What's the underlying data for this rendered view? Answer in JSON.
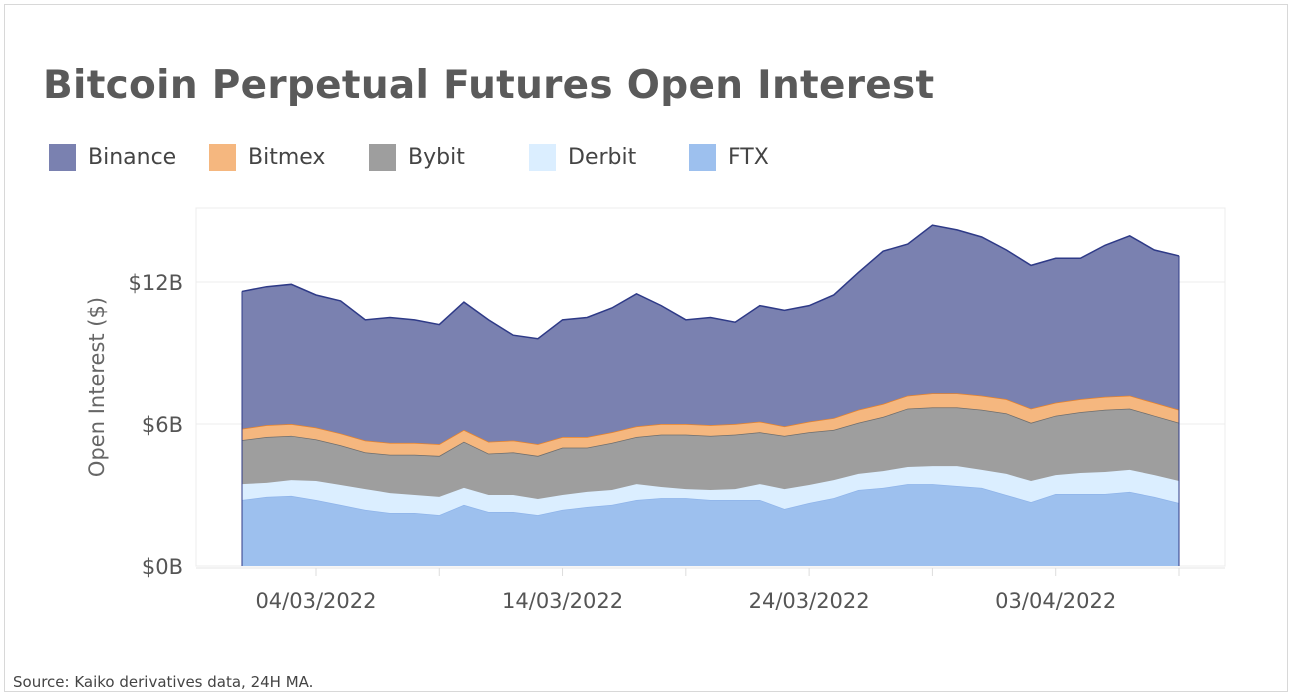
{
  "chart_data": {
    "type": "area",
    "stacked": true,
    "title": "Bitcoin Perpetual Futures Open Interest",
    "xlabel": "",
    "ylabel": "Open Interest ($)",
    "ylim": [
      0,
      15
    ],
    "y_unit": "billion USD",
    "yticks": [
      0,
      6,
      12
    ],
    "ytick_labels": [
      "$0B",
      "$6B",
      "$12B"
    ],
    "xtick_labels": [
      "04/03/2022",
      "14/03/2022",
      "24/03/2022",
      "03/04/2022"
    ],
    "xtick_indices": [
      3,
      13,
      23,
      33
    ],
    "minor_tick_indices": [
      8,
      18,
      28,
      38
    ],
    "legend_position": "top-left",
    "grid": true,
    "x": [
      "01/03/2022",
      "02/03/2022",
      "03/03/2022",
      "04/03/2022",
      "05/03/2022",
      "06/03/2022",
      "07/03/2022",
      "08/03/2022",
      "09/03/2022",
      "10/03/2022",
      "11/03/2022",
      "12/03/2022",
      "13/03/2022",
      "14/03/2022",
      "15/03/2022",
      "16/03/2022",
      "17/03/2022",
      "18/03/2022",
      "19/03/2022",
      "20/03/2022",
      "21/03/2022",
      "22/03/2022",
      "23/03/2022",
      "24/03/2022",
      "25/03/2022",
      "26/03/2022",
      "27/03/2022",
      "28/03/2022",
      "29/03/2022",
      "30/03/2022",
      "31/03/2022",
      "01/04/2022",
      "02/04/2022",
      "03/04/2022",
      "04/04/2022",
      "05/04/2022",
      "06/04/2022",
      "07/04/2022",
      "08/04/2022"
    ],
    "series": [
      {
        "name": "FTX",
        "fill": "#9dc0ee",
        "line": "#8fb4ea",
        "values": [
          2.79,
          2.92,
          2.96,
          2.79,
          2.58,
          2.37,
          2.24,
          2.24,
          2.15,
          2.58,
          2.28,
          2.28,
          2.15,
          2.37,
          2.49,
          2.58,
          2.79,
          2.87,
          2.87,
          2.79,
          2.79,
          2.79,
          2.41,
          2.66,
          2.87,
          3.21,
          3.3,
          3.46,
          3.46,
          3.38,
          3.3,
          3.0,
          2.7,
          3.04,
          3.04,
          3.04,
          3.13,
          2.92,
          2.66
        ]
      },
      {
        "name": "Derbit",
        "fill": "#dbeeff",
        "line": "#dbeeff",
        "values": [
          0.67,
          0.59,
          0.67,
          0.8,
          0.84,
          0.88,
          0.84,
          0.76,
          0.77,
          0.72,
          0.72,
          0.72,
          0.68,
          0.63,
          0.64,
          0.63,
          0.67,
          0.47,
          0.38,
          0.42,
          0.46,
          0.67,
          0.84,
          0.76,
          0.76,
          0.68,
          0.71,
          0.72,
          0.76,
          0.84,
          0.76,
          0.89,
          0.89,
          0.8,
          0.89,
          0.93,
          0.93,
          0.92,
          0.93
        ]
      },
      {
        "name": "Bybit",
        "fill": "#9e9e9e",
        "line": "#6e6e6e",
        "values": [
          1.86,
          1.94,
          1.87,
          1.76,
          1.68,
          1.55,
          1.62,
          1.7,
          1.73,
          1.95,
          1.75,
          1.8,
          1.82,
          2.0,
          1.87,
          1.99,
          1.99,
          2.21,
          2.3,
          2.29,
          2.3,
          2.19,
          2.25,
          2.23,
          2.12,
          2.16,
          2.29,
          2.47,
          2.48,
          2.48,
          2.54,
          2.56,
          2.46,
          2.51,
          2.57,
          2.63,
          2.59,
          2.51,
          2.46
        ]
      },
      {
        "name": "Bitmex",
        "fill": "#f5b77f",
        "line": "#e8832a",
        "values": [
          0.48,
          0.5,
          0.5,
          0.5,
          0.5,
          0.5,
          0.5,
          0.5,
          0.5,
          0.5,
          0.5,
          0.5,
          0.5,
          0.45,
          0.45,
          0.45,
          0.45,
          0.45,
          0.45,
          0.45,
          0.45,
          0.45,
          0.4,
          0.45,
          0.5,
          0.55,
          0.55,
          0.55,
          0.6,
          0.6,
          0.6,
          0.6,
          0.6,
          0.55,
          0.55,
          0.55,
          0.55,
          0.55,
          0.55
        ]
      },
      {
        "name": "Binance",
        "fill": "#7a81b0",
        "line": "#2e3a87",
        "values": [
          5.8,
          5.85,
          5.9,
          5.6,
          5.6,
          5.1,
          5.3,
          5.2,
          5.05,
          5.4,
          5.15,
          4.45,
          4.45,
          4.95,
          5.05,
          5.25,
          5.6,
          5.0,
          4.4,
          4.55,
          4.3,
          4.9,
          4.9,
          4.9,
          5.2,
          5.8,
          6.45,
          6.4,
          7.1,
          6.9,
          6.7,
          6.3,
          6.05,
          6.1,
          5.95,
          6.4,
          6.75,
          6.45,
          6.5
        ]
      }
    ]
  },
  "legend": [
    "Binance",
    "Bitmex",
    "Bybit",
    "Derbit",
    "FTX"
  ],
  "legend_colors": [
    "#7a81b0",
    "#f5b77f",
    "#9e9e9e",
    "#dbeeff",
    "#9dc0ee"
  ],
  "source": "Source: Kaiko derivatives data, 24H MA."
}
